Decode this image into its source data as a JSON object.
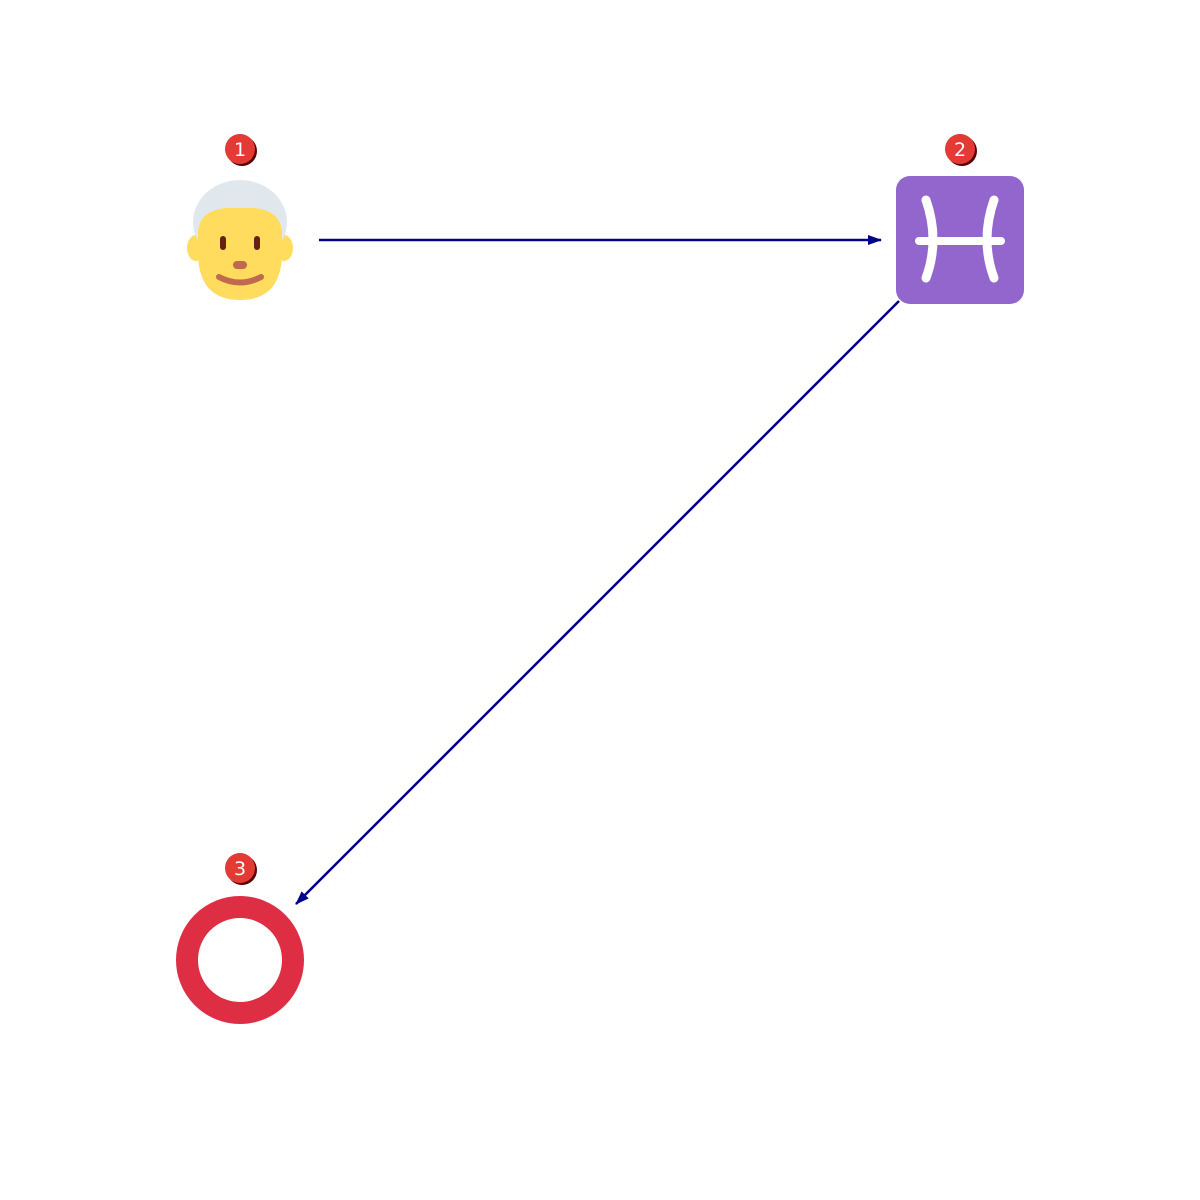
{
  "diagram": {
    "nodes": [
      {
        "id": "1",
        "badge": "1",
        "icon": "older-man-emoji-icon"
      },
      {
        "id": "2",
        "badge": "2",
        "icon": "pisces-zodiac-icon"
      },
      {
        "id": "3",
        "badge": "3",
        "icon": "heavy-large-circle-icon"
      }
    ],
    "edges": [
      {
        "from": "1",
        "to": "2",
        "direction": "right"
      },
      {
        "from": "2",
        "to": "3",
        "direction": "down-left"
      }
    ]
  },
  "colors": {
    "edge": "#00008b",
    "badge_fill": "#e53935",
    "badge_shadow": "#5a0000",
    "badge_text": "#ffffff",
    "face_skin": "#ffdc5d",
    "hair": "#e1e8ed",
    "facial_features": "#662113",
    "mouth": "#c1694f",
    "pisces_tile": "#9266cc",
    "pisces_glyph": "#ffffff",
    "circle_ring": "#dd2e44"
  }
}
